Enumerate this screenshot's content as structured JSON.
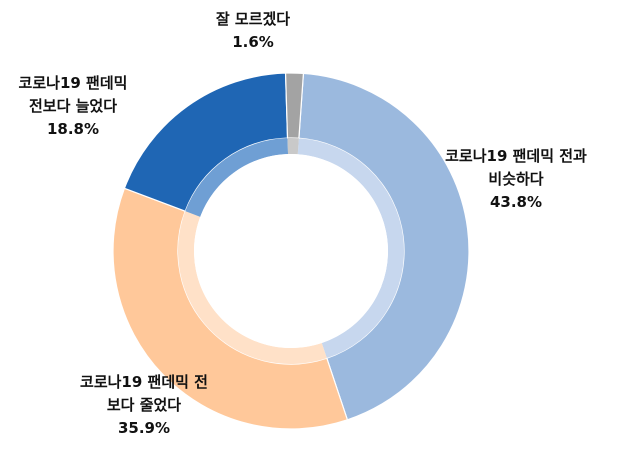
{
  "chart_data": {
    "type": "pie",
    "variant": "donut",
    "slices": [
      {
        "label_lines": [
          "코로나19 팬데믹 전과",
          "비슷하다"
        ],
        "value": 43.8,
        "value_text": "43.8%",
        "color": "#9BB9DE",
        "inner_color": "#C7D7EE"
      },
      {
        "label_lines": [
          "코로나19 팬데믹 전",
          "보다 줄었다"
        ],
        "value": 35.9,
        "value_text": "35.9%",
        "color": "#FFC89A",
        "inner_color": "#FFE1C8"
      },
      {
        "label_lines": [
          "코로나19 팬데믹",
          "전보다 늘었다"
        ],
        "value": 18.8,
        "value_text": "18.8%",
        "color": "#1F66B4",
        "inner_color": "#6F9FD4"
      },
      {
        "label_lines": [
          "잘 모르겠다"
        ],
        "value": 1.6,
        "value_text": "1.6%",
        "color": "#A3A3A3",
        "inner_color": "#C9C9C9"
      }
    ],
    "start_angle_deg": 4,
    "direction": "clockwise",
    "legend": "none"
  }
}
